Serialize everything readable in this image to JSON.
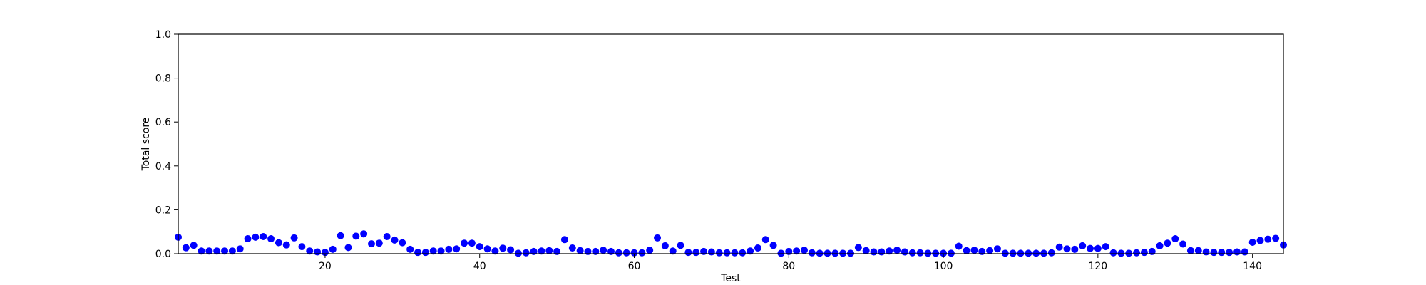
{
  "chart_data": {
    "type": "scatter",
    "title": "",
    "xlabel": "Test",
    "ylabel": "Total score",
    "xlim": [
      1,
      144
    ],
    "ylim": [
      0,
      1.0
    ],
    "xticks": [
      "20",
      "40",
      "60",
      "80",
      "100",
      "120",
      "140"
    ],
    "yticks": [
      "0.0",
      "0.2",
      "0.4",
      "0.6",
      "0.8",
      "1.0"
    ],
    "grid": false,
    "marker_color": "#0000ff",
    "points": [
      [
        1,
        0.075
      ],
      [
        2,
        0.027
      ],
      [
        3,
        0.038
      ],
      [
        4,
        0.012
      ],
      [
        5,
        0.012
      ],
      [
        6,
        0.012
      ],
      [
        7,
        0.012
      ],
      [
        8,
        0.012
      ],
      [
        9,
        0.022
      ],
      [
        10,
        0.068
      ],
      [
        11,
        0.075
      ],
      [
        12,
        0.078
      ],
      [
        13,
        0.068
      ],
      [
        14,
        0.05
      ],
      [
        15,
        0.04
      ],
      [
        16,
        0.072
      ],
      [
        17,
        0.032
      ],
      [
        18,
        0.012
      ],
      [
        19,
        0.008
      ],
      [
        20,
        0.006
      ],
      [
        21,
        0.02
      ],
      [
        22,
        0.082
      ],
      [
        23,
        0.028
      ],
      [
        24,
        0.08
      ],
      [
        25,
        0.09
      ],
      [
        26,
        0.045
      ],
      [
        27,
        0.048
      ],
      [
        28,
        0.078
      ],
      [
        29,
        0.062
      ],
      [
        30,
        0.05
      ],
      [
        31,
        0.02
      ],
      [
        32,
        0.006
      ],
      [
        33,
        0.006
      ],
      [
        34,
        0.012
      ],
      [
        35,
        0.012
      ],
      [
        36,
        0.02
      ],
      [
        37,
        0.022
      ],
      [
        38,
        0.048
      ],
      [
        39,
        0.048
      ],
      [
        40,
        0.032
      ],
      [
        41,
        0.022
      ],
      [
        42,
        0.012
      ],
      [
        43,
        0.025
      ],
      [
        44,
        0.018
      ],
      [
        45,
        0.002
      ],
      [
        46,
        0.004
      ],
      [
        47,
        0.01
      ],
      [
        48,
        0.012
      ],
      [
        49,
        0.014
      ],
      [
        50,
        0.01
      ],
      [
        51,
        0.064
      ],
      [
        52,
        0.026
      ],
      [
        53,
        0.014
      ],
      [
        54,
        0.01
      ],
      [
        55,
        0.01
      ],
      [
        56,
        0.016
      ],
      [
        57,
        0.01
      ],
      [
        58,
        0.004
      ],
      [
        59,
        0.004
      ],
      [
        60,
        0.004
      ],
      [
        61,
        0.004
      ],
      [
        62,
        0.016
      ],
      [
        63,
        0.072
      ],
      [
        64,
        0.036
      ],
      [
        65,
        0.012
      ],
      [
        66,
        0.038
      ],
      [
        67,
        0.006
      ],
      [
        68,
        0.006
      ],
      [
        69,
        0.01
      ],
      [
        70,
        0.008
      ],
      [
        71,
        0.004
      ],
      [
        72,
        0.004
      ],
      [
        73,
        0.004
      ],
      [
        74,
        0.004
      ],
      [
        75,
        0.012
      ],
      [
        76,
        0.026
      ],
      [
        77,
        0.064
      ],
      [
        78,
        0.038
      ],
      [
        79,
        0.002
      ],
      [
        80,
        0.01
      ],
      [
        81,
        0.012
      ],
      [
        82,
        0.016
      ],
      [
        83,
        0.004
      ],
      [
        84,
        0.002
      ],
      [
        85,
        0.002
      ],
      [
        86,
        0.002
      ],
      [
        87,
        0.002
      ],
      [
        88,
        0.002
      ],
      [
        89,
        0.028
      ],
      [
        90,
        0.014
      ],
      [
        91,
        0.008
      ],
      [
        92,
        0.008
      ],
      [
        93,
        0.012
      ],
      [
        94,
        0.016
      ],
      [
        95,
        0.008
      ],
      [
        96,
        0.004
      ],
      [
        97,
        0.004
      ],
      [
        98,
        0.002
      ],
      [
        99,
        0.002
      ],
      [
        100,
        0.002
      ],
      [
        101,
        0.002
      ],
      [
        102,
        0.034
      ],
      [
        103,
        0.014
      ],
      [
        104,
        0.016
      ],
      [
        105,
        0.01
      ],
      [
        106,
        0.014
      ],
      [
        107,
        0.022
      ],
      [
        108,
        0.002
      ],
      [
        109,
        0.002
      ],
      [
        110,
        0.002
      ],
      [
        111,
        0.002
      ],
      [
        112,
        0.002
      ],
      [
        113,
        0.002
      ],
      [
        114,
        0.004
      ],
      [
        115,
        0.03
      ],
      [
        116,
        0.022
      ],
      [
        117,
        0.02
      ],
      [
        118,
        0.036
      ],
      [
        119,
        0.024
      ],
      [
        120,
        0.024
      ],
      [
        121,
        0.032
      ],
      [
        122,
        0.004
      ],
      [
        123,
        0.002
      ],
      [
        124,
        0.002
      ],
      [
        125,
        0.004
      ],
      [
        126,
        0.006
      ],
      [
        127,
        0.01
      ],
      [
        128,
        0.036
      ],
      [
        129,
        0.048
      ],
      [
        130,
        0.068
      ],
      [
        131,
        0.044
      ],
      [
        132,
        0.014
      ],
      [
        133,
        0.014
      ],
      [
        134,
        0.008
      ],
      [
        135,
        0.006
      ],
      [
        136,
        0.006
      ],
      [
        137,
        0.006
      ],
      [
        138,
        0.008
      ],
      [
        139,
        0.008
      ],
      [
        140,
        0.052
      ],
      [
        141,
        0.06
      ],
      [
        142,
        0.066
      ],
      [
        143,
        0.07
      ],
      [
        144,
        0.04
      ]
    ]
  }
}
